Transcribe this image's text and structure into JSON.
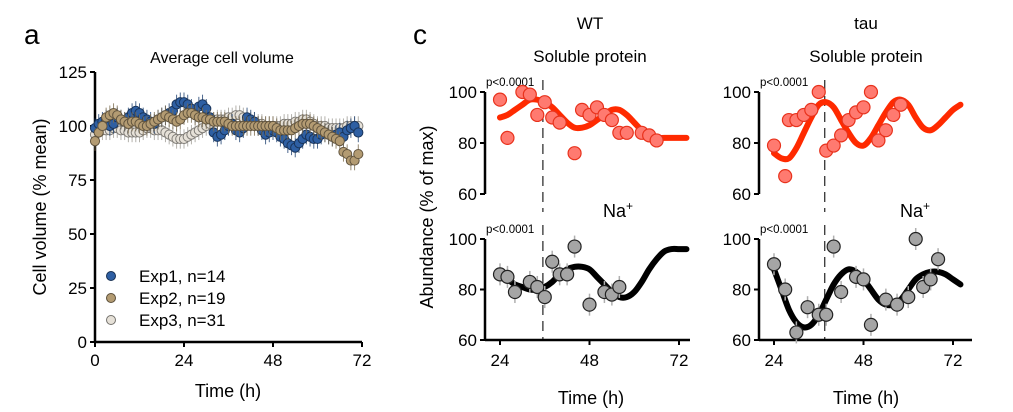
{
  "figure": {
    "panel_labels": [
      "a",
      "c"
    ]
  },
  "chart_data": [
    {
      "panel": "a",
      "type": "scatter",
      "title": "Average cell volume",
      "xlabel": "Time (h)",
      "ylabel": "Cell volume (% mean)",
      "xlim": [
        0,
        72
      ],
      "ylim": [
        0,
        125
      ],
      "xticks": [
        0,
        24,
        48,
        72
      ],
      "yticks": [
        0,
        25,
        50,
        75,
        100,
        125
      ],
      "legend_position": "bottom-left",
      "series": [
        {
          "name": "Exp1, n=14",
          "color": "#2e5fa3",
          "x": [
            0,
            1,
            2,
            3,
            4,
            5,
            6,
            7,
            8,
            9,
            10,
            11,
            12,
            13,
            14,
            15,
            16,
            17,
            18,
            19,
            20,
            21,
            22,
            23,
            24,
            25,
            26,
            27,
            28,
            29,
            30,
            31,
            32,
            33,
            34,
            35,
            36,
            37,
            38,
            39,
            40,
            41,
            42,
            43,
            44,
            45,
            46,
            47,
            48,
            49,
            50,
            51,
            52,
            53,
            54,
            55,
            56,
            57,
            58,
            59,
            60,
            61,
            62,
            63,
            64,
            65,
            66,
            67,
            68,
            69,
            70,
            71
          ],
          "values": [
            99,
            101,
            102,
            103,
            100,
            101,
            104,
            103,
            102,
            104,
            106,
            107,
            106,
            104,
            103,
            102,
            101,
            103,
            104,
            105,
            106,
            107,
            110,
            111,
            111,
            110,
            108,
            106,
            109,
            110,
            108,
            104,
            97,
            95,
            96,
            98,
            100,
            101,
            98,
            97,
            99,
            104,
            103,
            102,
            100,
            98,
            96,
            97,
            98,
            97,
            95,
            94,
            92,
            91,
            90,
            92,
            94,
            96,
            95,
            94,
            94,
            96,
            97,
            96,
            95,
            96,
            97,
            95,
            98,
            99,
            100,
            97
          ]
        },
        {
          "name": "Exp2, n=19",
          "color": "#b39b72",
          "x": [
            0,
            1,
            2,
            3,
            4,
            5,
            6,
            7,
            8,
            9,
            10,
            11,
            12,
            13,
            14,
            15,
            16,
            17,
            18,
            19,
            20,
            21,
            22,
            23,
            24,
            25,
            26,
            27,
            28,
            29,
            30,
            31,
            32,
            33,
            34,
            35,
            36,
            37,
            38,
            39,
            40,
            41,
            42,
            43,
            44,
            45,
            46,
            47,
            48,
            49,
            50,
            51,
            52,
            53,
            54,
            55,
            56,
            57,
            58,
            59,
            60,
            61,
            62,
            63,
            64,
            65,
            66,
            67,
            68,
            69,
            70,
            71
          ],
          "values": [
            93,
            97,
            100,
            104,
            105,
            106,
            105,
            103,
            102,
            101,
            102,
            102,
            101,
            100,
            100,
            101,
            102,
            103,
            104,
            105,
            104,
            103,
            102,
            103,
            105,
            106,
            106,
            105,
            104,
            104,
            103,
            103,
            102,
            102,
            102,
            102,
            101,
            100,
            100,
            100,
            100,
            100,
            100,
            100,
            100,
            100,
            100,
            100,
            100,
            99,
            98,
            98,
            98,
            98,
            99,
            100,
            101,
            101,
            101,
            100,
            99,
            98,
            97,
            96,
            95,
            94,
            93,
            88,
            87,
            84,
            84,
            87
          ]
        },
        {
          "name": "Exp3, n=31",
          "color": "#e6e1d8",
          "x": [
            0,
            1,
            2,
            3,
            4,
            5,
            6,
            7,
            8,
            9,
            10,
            11,
            12,
            13,
            14,
            15,
            16,
            17,
            18,
            19,
            20,
            21,
            22,
            23,
            24,
            25,
            26,
            27,
            28,
            29,
            30,
            31,
            32,
            33,
            34,
            35,
            36,
            37,
            38,
            39,
            40,
            41,
            42,
            43,
            44,
            45,
            46,
            47,
            48,
            49,
            50,
            51,
            52,
            53,
            54,
            55,
            56,
            57,
            58,
            59,
            60,
            61,
            62,
            63,
            64,
            65,
            66,
            67,
            68,
            69,
            70,
            71
          ],
          "values": [
            96,
            97,
            98,
            98,
            98,
            99,
            99,
            98,
            98,
            97,
            97,
            97,
            97,
            98,
            99,
            99,
            98,
            98,
            98,
            97,
            96,
            95,
            94,
            94,
            94,
            95,
            96,
            97,
            98,
            99,
            100,
            101,
            102,
            103,
            103,
            103,
            104,
            104,
            105,
            105,
            104,
            103,
            102,
            102,
            101,
            101,
            100,
            100,
            100,
            100,
            100,
            101,
            101,
            101,
            102,
            102,
            103,
            103,
            102,
            101,
            100,
            100,
            100,
            99,
            99,
            99,
            99,
            99,
            100,
            100,
            100,
            100
          ]
        }
      ]
    },
    {
      "panel": "c",
      "group": "WT",
      "type": "scatter",
      "title": "Soluble protein",
      "p_value_label": "p<0.0001",
      "ylabel": "Abundance (% of max)",
      "xlim": [
        22,
        75
      ],
      "ylim": [
        60,
        100
      ],
      "yticks": [
        60,
        80,
        100
      ],
      "dashed_line_x": 35.5,
      "color": "#ff3b1f",
      "points_x": [
        24,
        26,
        28,
        30,
        32,
        34,
        36,
        38,
        40,
        42,
        44,
        46,
        48,
        50,
        52,
        54,
        56,
        58,
        60,
        62,
        64,
        66,
        68,
        70,
        72
      ],
      "points_y": [
        97,
        82,
        null,
        100,
        99,
        91,
        96,
        90,
        88,
        null,
        76,
        93,
        91,
        94,
        91,
        89,
        84,
        84,
        null,
        84,
        83,
        81,
        null,
        null,
        null
      ],
      "fit_x": [
        24,
        26,
        28,
        30,
        32,
        34,
        36,
        38,
        40,
        42,
        44,
        46,
        48,
        50,
        52,
        54,
        56,
        58,
        60,
        62,
        64,
        66,
        68,
        70,
        72,
        74
      ],
      "fit_y": [
        90,
        91,
        93,
        95,
        97,
        97,
        96,
        94,
        91,
        88,
        86,
        86,
        87,
        89,
        91,
        93,
        93,
        91,
        88,
        85,
        83,
        82,
        82,
        82,
        82,
        82
      ]
    },
    {
      "panel": "c",
      "group": "WT",
      "type": "scatter",
      "title": "Na+",
      "p_value_label": "p<0.0001",
      "xlabel": "Time (h)",
      "xlim": [
        22,
        75
      ],
      "ylim": [
        60,
        100
      ],
      "xticks": [
        24,
        48,
        72
      ],
      "yticks": [
        60,
        80,
        100
      ],
      "dashed_line_x": 35.5,
      "color": "#a0a0a0",
      "points_x": [
        24,
        26,
        28,
        30,
        32,
        34,
        36,
        38,
        40,
        42,
        44,
        46,
        48,
        50,
        52,
        54,
        56,
        58,
        60,
        62,
        64,
        66,
        68,
        70,
        72,
        74
      ],
      "points_y": [
        86,
        85,
        79,
        null,
        83,
        81,
        77,
        91,
        86,
        86,
        97,
        null,
        74,
        null,
        79,
        78,
        81,
        null,
        null,
        null,
        null,
        null,
        null,
        null,
        null,
        null
      ],
      "fit_x": [
        24,
        26,
        28,
        30,
        32,
        34,
        36,
        38,
        40,
        42,
        44,
        46,
        48,
        50,
        52,
        54,
        56,
        58,
        60,
        62,
        64,
        66,
        68,
        70,
        72,
        74
      ],
      "fit_y": [
        85,
        84,
        82,
        81,
        80,
        80,
        81,
        83,
        86,
        88,
        89,
        89,
        88,
        85,
        82,
        79,
        77,
        77,
        79,
        83,
        88,
        92,
        95,
        96,
        96,
        96
      ]
    },
    {
      "panel": "c",
      "group": "tau",
      "type": "scatter",
      "title": "Soluble protein",
      "p_value_label": "p<0.0001",
      "xlim": [
        22,
        75
      ],
      "ylim": [
        60,
        100
      ],
      "yticks": [
        60,
        80,
        100
      ],
      "dashed_line_x": 37.6,
      "color": "#ff3b1f",
      "points_x": [
        24,
        27,
        28,
        30,
        32,
        34,
        36,
        38,
        40,
        42,
        44,
        46,
        48,
        50,
        52,
        54,
        56,
        58,
        60,
        62,
        64,
        66,
        68,
        70,
        72
      ],
      "points_y": [
        79,
        67,
        89,
        89,
        91,
        93,
        100,
        77,
        79,
        83,
        89,
        92,
        94,
        100,
        81,
        85,
        91,
        95,
        null,
        null,
        null,
        null,
        null,
        null,
        null
      ],
      "fit_x": [
        24,
        26,
        28,
        30,
        32,
        34,
        36,
        38,
        40,
        42,
        44,
        46,
        48,
        50,
        52,
        54,
        56,
        58,
        60,
        62,
        64,
        66,
        68,
        70,
        72,
        74
      ],
      "fit_y": [
        76,
        74,
        74,
        78,
        84,
        90,
        95,
        96,
        94,
        89,
        84,
        80,
        79,
        82,
        87,
        92,
        96,
        97,
        95,
        90,
        86,
        85,
        87,
        90,
        93,
        95
      ]
    },
    {
      "panel": "c",
      "group": "tau",
      "type": "scatter",
      "title": "Na+",
      "p_value_label": "p<0.0001",
      "xlabel": "Time (h)",
      "xlim": [
        22,
        75
      ],
      "ylim": [
        60,
        100
      ],
      "xticks": [
        24,
        48,
        72
      ],
      "yticks": [
        60,
        80,
        100
      ],
      "dashed_line_x": 37.6,
      "color": "#a0a0a0",
      "points_x": [
        24,
        27,
        30,
        33,
        36,
        38,
        40,
        42,
        46,
        48,
        50,
        54,
        57,
        60,
        62,
        64,
        66,
        68,
        70,
        72,
        74
      ],
      "points_y": [
        90,
        80,
        63,
        73,
        70,
        70,
        97,
        79,
        85,
        84,
        66,
        76,
        74,
        77,
        100,
        81,
        84,
        92,
        null,
        null,
        null
      ],
      "fit_x": [
        24,
        26,
        28,
        30,
        32,
        34,
        36,
        38,
        40,
        42,
        44,
        46,
        48,
        50,
        52,
        54,
        56,
        58,
        60,
        62,
        64,
        66,
        68,
        70,
        72,
        74
      ],
      "fit_y": [
        88,
        80,
        72,
        67,
        65,
        66,
        70,
        76,
        82,
        86,
        88,
        87,
        84,
        80,
        76,
        74,
        74,
        76,
        80,
        84,
        86,
        87,
        87,
        86,
        84,
        82
      ]
    }
  ],
  "labels": {
    "panel_a_letter": "a",
    "panel_c_letter": "c",
    "group_wt": "WT",
    "group_tau": "tau",
    "soluble_protein": "Soluble protein",
    "na_plus": "Na",
    "na_plus_sup": "+",
    "p_value": "p<0.0001",
    "abundance_label": "Abundance (% of max)",
    "time_label": "Time (h)",
    "cell_volume_label": "Cell volume (% mean)",
    "avg_cell_volume_title": "Average cell volume"
  }
}
